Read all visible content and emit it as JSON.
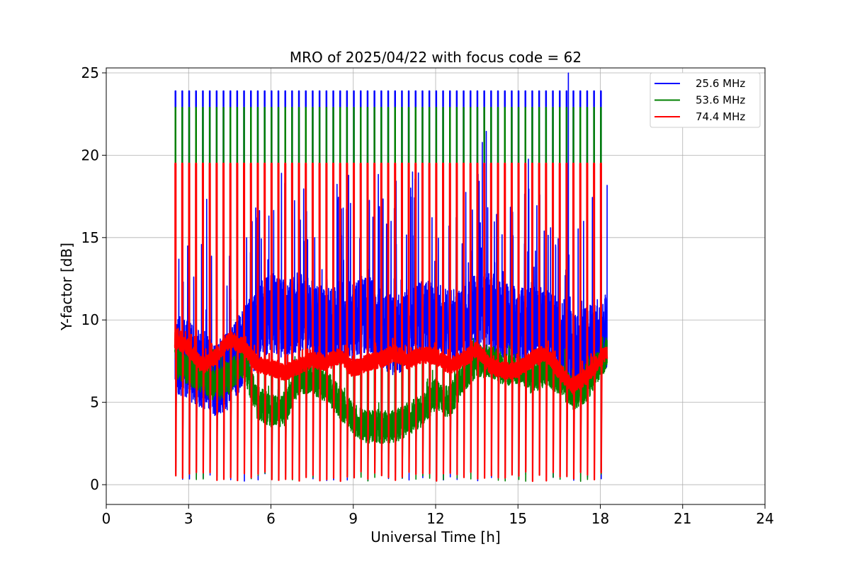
{
  "chart_data": {
    "type": "line",
    "title": "MRO of 2025/04/22 with focus code = 62",
    "xlabel": "Universal Time [h]",
    "ylabel": "Y-factor [dB]",
    "xlim": [
      0,
      24
    ],
    "ylim": [
      -1.2,
      25.3
    ],
    "xticks": [
      0,
      3,
      6,
      9,
      12,
      15,
      18,
      21,
      24
    ],
    "xtick_labels": [
      "0",
      "3",
      "6",
      "9",
      "12",
      "15",
      "18",
      "21",
      "24"
    ],
    "yticks": [
      0,
      5,
      10,
      15,
      20,
      25
    ],
    "ytick_labels": [
      "0",
      "5",
      "10",
      "15",
      "20",
      "25"
    ],
    "grid": true,
    "legend_position": "top-right",
    "data_range_x": [
      2.5,
      18.25
    ],
    "calibration_pulse_interval_h": 0.25,
    "series": [
      {
        "name": "25.6 MHz",
        "color": "#0000ff",
        "calibration_peak": 23.9,
        "x": [
          2.5,
          3.0,
          3.5,
          4.0,
          4.5,
          5.0,
          5.5,
          6.0,
          6.5,
          7.0,
          7.5,
          8.0,
          8.5,
          9.0,
          9.5,
          10.0,
          10.5,
          11.0,
          11.5,
          12.0,
          12.5,
          13.0,
          13.5,
          14.0,
          14.5,
          15.0,
          15.5,
          16.0,
          16.5,
          17.0,
          17.5,
          18.0,
          18.25
        ],
        "y": [
          8.0,
          7.5,
          7.0,
          6.5,
          7.0,
          8.5,
          9.5,
          10.5,
          10.0,
          10.5,
          10.0,
          9.5,
          10.0,
          10.0,
          10.5,
          9.5,
          9.0,
          9.5,
          10.0,
          10.0,
          9.5,
          9.5,
          10.5,
          10.5,
          10.0,
          9.5,
          10.0,
          9.5,
          9.0,
          8.0,
          8.5,
          9.0,
          9.5
        ]
      },
      {
        "name": "53.6 MHz",
        "color": "#008000",
        "calibration_peak": 22.9,
        "x": [
          2.5,
          3.0,
          3.5,
          4.0,
          4.5,
          5.0,
          5.5,
          6.0,
          6.5,
          7.0,
          7.5,
          8.0,
          8.5,
          9.0,
          9.5,
          10.0,
          10.5,
          11.0,
          11.5,
          12.0,
          12.5,
          13.0,
          13.5,
          14.0,
          14.5,
          15.0,
          15.5,
          16.0,
          16.5,
          17.0,
          17.5,
          18.0,
          18.25
        ],
        "y": [
          7.5,
          7.0,
          6.5,
          6.0,
          6.5,
          7.5,
          5.0,
          4.5,
          4.5,
          6.5,
          6.5,
          6.0,
          5.0,
          4.0,
          3.5,
          3.5,
          3.5,
          4.0,
          4.5,
          5.5,
          5.0,
          6.5,
          7.5,
          7.5,
          7.0,
          7.0,
          6.5,
          7.0,
          6.5,
          5.5,
          6.0,
          7.5,
          8.0
        ]
      },
      {
        "name": "74.4 MHz",
        "color": "#ff0000",
        "calibration_peak": 19.5,
        "x": [
          2.5,
          3.0,
          3.5,
          4.0,
          4.5,
          5.0,
          5.5,
          6.0,
          6.5,
          7.0,
          7.5,
          8.0,
          8.5,
          9.0,
          9.5,
          10.0,
          10.5,
          11.0,
          11.5,
          12.0,
          12.5,
          13.0,
          13.5,
          14.0,
          14.5,
          15.0,
          15.5,
          16.0,
          16.5,
          17.0,
          17.5,
          18.0,
          18.25
        ],
        "y": [
          8.8,
          8.3,
          7.2,
          7.8,
          8.8,
          8.4,
          7.3,
          7.1,
          6.8,
          7.2,
          7.6,
          7.4,
          7.8,
          7.0,
          7.4,
          7.6,
          8.0,
          7.5,
          7.9,
          7.8,
          7.2,
          7.6,
          8.2,
          7.2,
          6.9,
          7.0,
          7.6,
          8.0,
          6.9,
          6.0,
          6.6,
          7.6,
          8.1
        ]
      }
    ]
  }
}
